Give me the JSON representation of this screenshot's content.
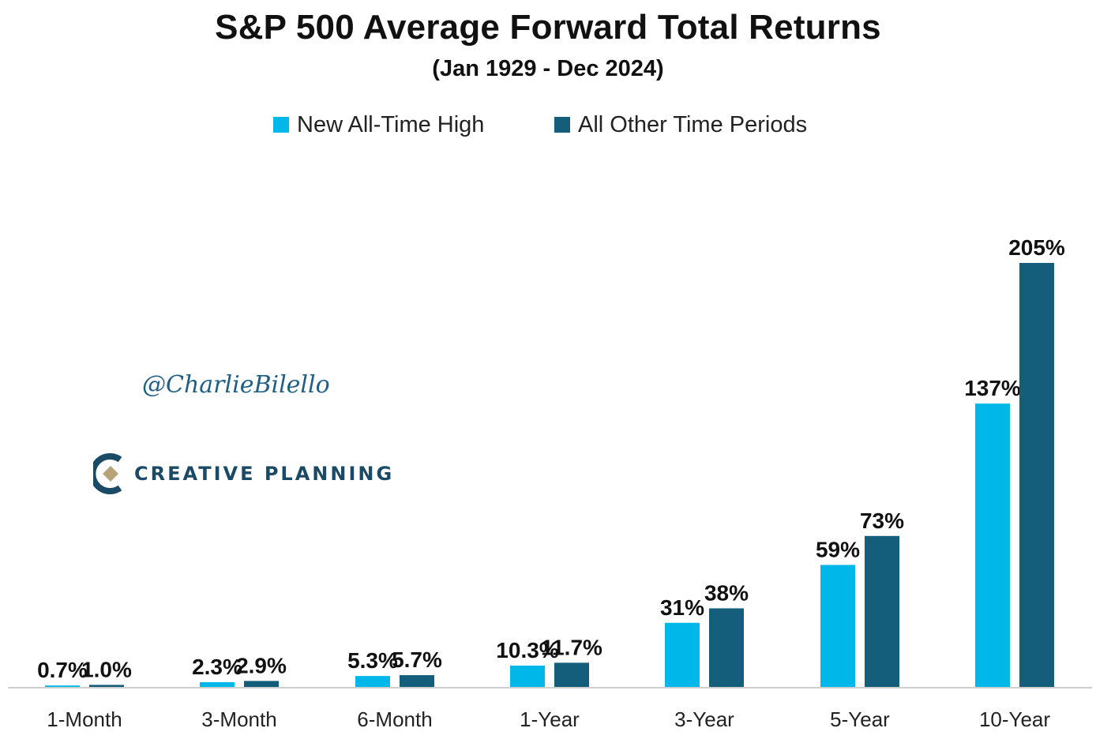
{
  "colors": {
    "series_ath": "#00b7ea",
    "series_other": "#155e7b",
    "axis": "#cfcfcf",
    "text": "#111111"
  },
  "watermark": {
    "handle": "@CharlieBilello",
    "logo_text": "CREATIVE PLANNING",
    "logo_icon": "creative-planning-logo-icon"
  },
  "chart_data": {
    "type": "bar",
    "title": "S&P 500 Average Forward Total Returns",
    "subtitle": "(Jan 1929 - Dec 2024)",
    "xlabel": "",
    "ylabel": "",
    "categories": [
      "1-Month",
      "3-Month",
      "6-Month",
      "1-Year",
      "3-Year",
      "5-Year",
      "10-Year"
    ],
    "series": [
      {
        "name": "New All-Time High",
        "values": [
          0.7,
          2.3,
          5.3,
          10.3,
          31,
          59,
          137
        ],
        "labels": [
          "0.7%",
          "2.3%",
          "5.3%",
          "10.3%",
          "31%",
          "59%",
          "137%"
        ]
      },
      {
        "name": "All Other Time Periods",
        "values": [
          1.0,
          2.9,
          5.7,
          11.7,
          38,
          73,
          205
        ],
        "labels": [
          "1.0%",
          "2.9%",
          "5.7%",
          "11.7%",
          "38%",
          "73%",
          "205%"
        ]
      }
    ],
    "ylim": [
      0,
      210
    ],
    "grid": false,
    "legend_position": "top"
  }
}
